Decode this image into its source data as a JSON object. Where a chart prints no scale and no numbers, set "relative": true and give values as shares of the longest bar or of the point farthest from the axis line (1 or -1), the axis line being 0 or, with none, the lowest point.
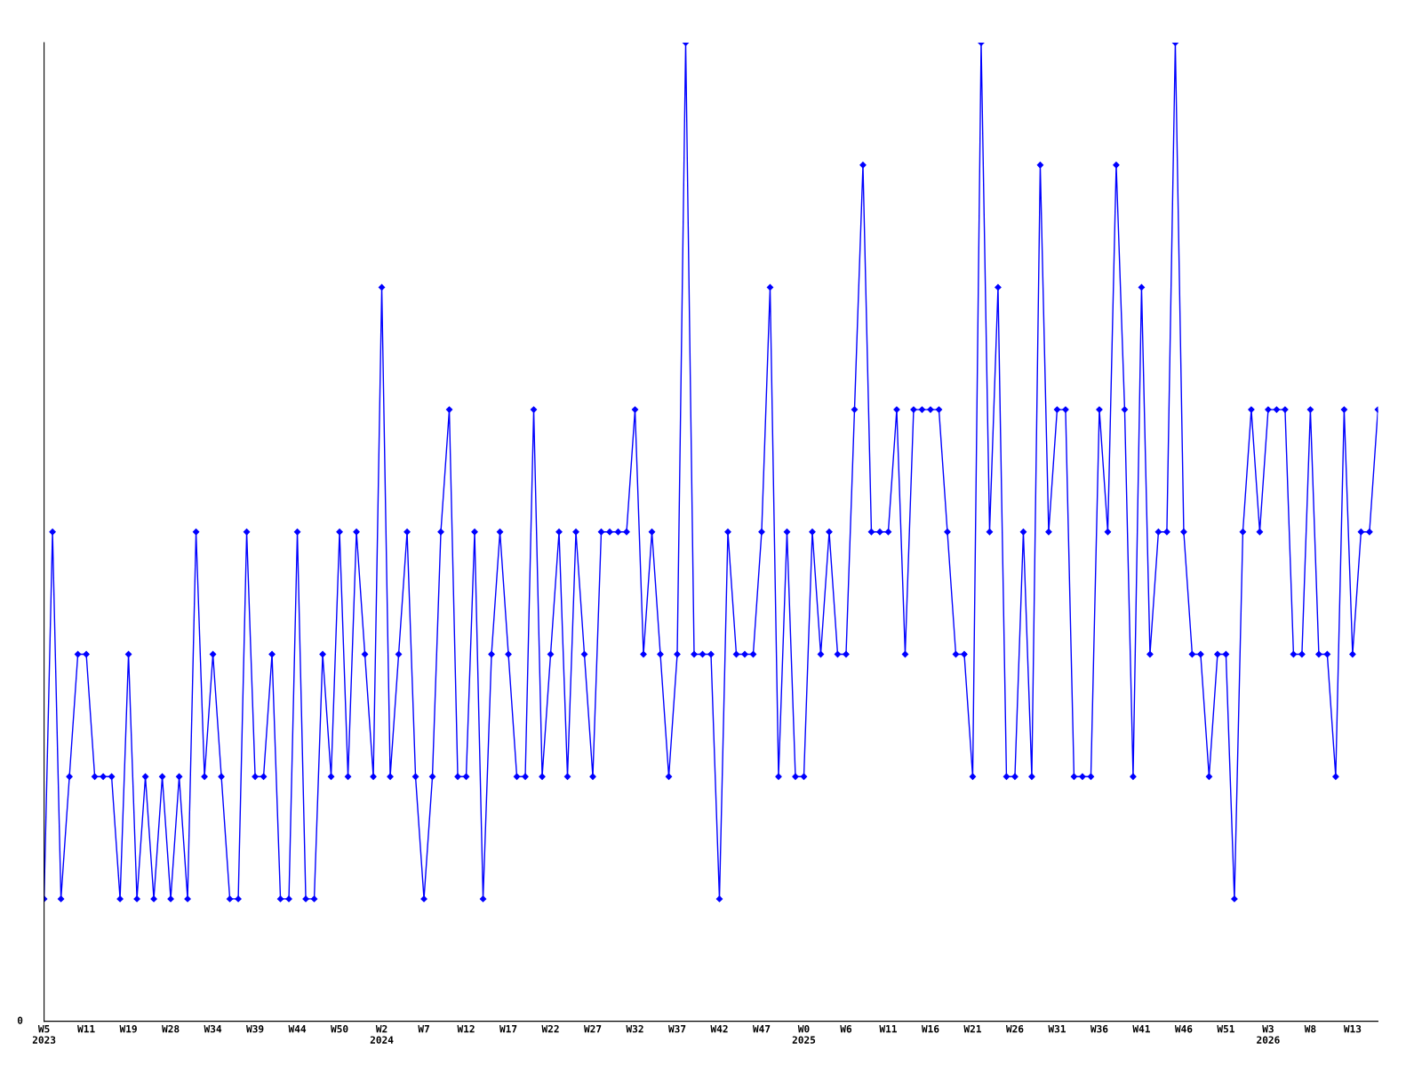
{
  "chart_data": {
    "type": "line",
    "relative": true,
    "categories": [
      "W5\n2023",
      null,
      null,
      null,
      null,
      "W11",
      null,
      null,
      null,
      null,
      "W19",
      null,
      null,
      null,
      null,
      "W28",
      null,
      null,
      null,
      null,
      "W34",
      null,
      null,
      null,
      null,
      "W39",
      null,
      null,
      null,
      null,
      "W44",
      null,
      null,
      null,
      null,
      "W50",
      null,
      null,
      null,
      null,
      "W2\n2024",
      null,
      null,
      null,
      null,
      "W7",
      null,
      null,
      null,
      null,
      "W12",
      null,
      null,
      null,
      null,
      "W17",
      null,
      null,
      null,
      null,
      "W22",
      null,
      null,
      null,
      null,
      "W27",
      null,
      null,
      null,
      null,
      "W32",
      null,
      null,
      null,
      null,
      "W37",
      null,
      null,
      null,
      null,
      "W42",
      null,
      null,
      null,
      null,
      "W47",
      null,
      null,
      null,
      null,
      "W0\n2025",
      null,
      null,
      null,
      null,
      "W6",
      null,
      null,
      null,
      null,
      "W11",
      null,
      null,
      null,
      null,
      "W16",
      null,
      null,
      null,
      null,
      "W21",
      null,
      null,
      null,
      null,
      "W26",
      null,
      null,
      null,
      null,
      "W31",
      null,
      null,
      null,
      null,
      "W36",
      null,
      null,
      null,
      null,
      "W41",
      null,
      null,
      null,
      null,
      "W46",
      null,
      null,
      null,
      null,
      "W51",
      null,
      null,
      null,
      null,
      "W3\n2026",
      null,
      null,
      null,
      null,
      "W8",
      null,
      null,
      null,
      null,
      "W13",
      null,
      null,
      null
    ],
    "series": [
      {
        "color": "#0000ff",
        "values": [
          0.125,
          0.5,
          0.125,
          0.25,
          0.375,
          0.375,
          0.25,
          0.25,
          0.25,
          0.125,
          0.375,
          0.125,
          0.25,
          0.125,
          0.25,
          0.125,
          0.25,
          0.125,
          0.5,
          0.25,
          0.375,
          0.25,
          0.125,
          0.125,
          0.5,
          0.25,
          0.25,
          0.375,
          0.125,
          0.125,
          0.5,
          0.125,
          0.125,
          0.375,
          0.25,
          0.5,
          0.25,
          0.5,
          0.375,
          0.25,
          0.75,
          0.25,
          0.375,
          0.5,
          0.25,
          0.125,
          0.25,
          0.5,
          0.625,
          0.25,
          0.25,
          0.5,
          0.125,
          0.375,
          0.5,
          0.375,
          0.25,
          0.25,
          0.625,
          0.25,
          0.375,
          0.5,
          0.25,
          0.5,
          0.375,
          0.25,
          0.5,
          0.5,
          0.5,
          0.5,
          0.625,
          0.375,
          0.5,
          0.375,
          0.25,
          0.375,
          1,
          0.375,
          0.375,
          0.375,
          0.125,
          0.5,
          0.375,
          0.375,
          0.375,
          0.5,
          0.75,
          0.25,
          0.5,
          0.25,
          0.25,
          0.5,
          0.375,
          0.5,
          0.375,
          0.375,
          0.625,
          0.875,
          0.5,
          0.5,
          0.5,
          0.625,
          0.375,
          0.625,
          0.625,
          0.625,
          0.625,
          0.5,
          0.375,
          0.375,
          0.25,
          1,
          0.5,
          0.75,
          0.25,
          0.25,
          0.5,
          0.25,
          0.875,
          0.5,
          0.625,
          0.625,
          0.25,
          0.25,
          0.25,
          0.625,
          0.5,
          0.875,
          0.625,
          0.25,
          0.75,
          0.375,
          0.5,
          0.5,
          1,
          0.5,
          0.375,
          0.375,
          0.25,
          0.375,
          0.375,
          0.125,
          0.5,
          0.625,
          0.5,
          0.625,
          0.625,
          0.625,
          0.375,
          0.375,
          0.625,
          0.375,
          0.375,
          0.25,
          0.625,
          0.375,
          0.5,
          0.5,
          0.625
        ]
      }
    ],
    "annotations": [
      "0"
    ],
    "marker": "diamond",
    "line_style": "solid",
    "grid": false,
    "legend": false
  }
}
